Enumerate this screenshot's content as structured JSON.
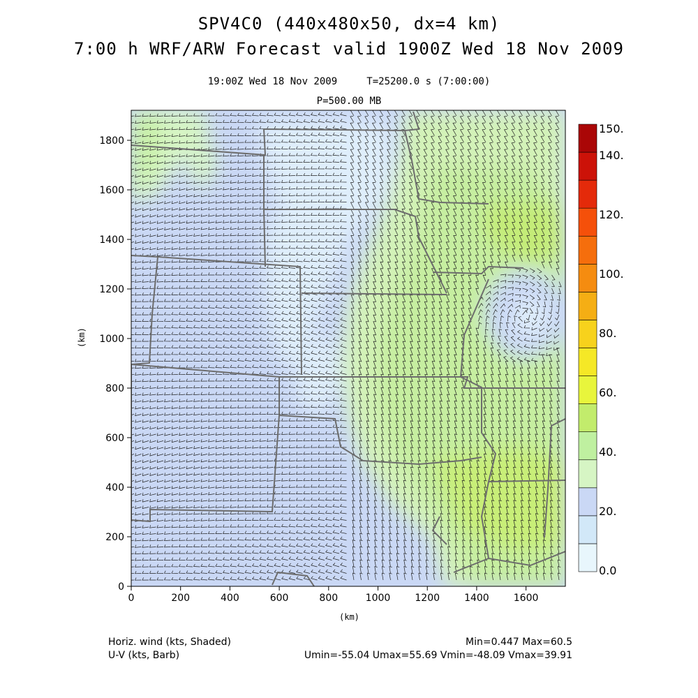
{
  "header": {
    "title_line1": "SPV4C0 (440x480x50, dx=4 km)",
    "title_line2": "7:00 h WRF/ARW Forecast valid 1900Z Wed 18 Nov 2009",
    "valid_time": "19:00Z Wed 18 Nov 2009     T=25200.0 s (7:00:00)",
    "level": "P=500.00 MB"
  },
  "axes": {
    "xlabel": "(km)",
    "ylabel": "(km)",
    "x_ticks": [
      "0",
      "200",
      "400",
      "600",
      "800",
      "1000",
      "1200",
      "1400",
      "1600"
    ],
    "y_ticks": [
      "0",
      "200",
      "400",
      "600",
      "800",
      "1000",
      "1200",
      "1400",
      "1600",
      "1800"
    ]
  },
  "colorbar": {
    "labels": [
      "0.0",
      "20.",
      "40.",
      "60.",
      "80.",
      "100.",
      "120.",
      "140.",
      "150."
    ],
    "colors": [
      "#e8f6fc",
      "#d2e8f8",
      "#cad8f5",
      "#d6f5c4",
      "#bff0a0",
      "#c2ec6c",
      "#e8f53c",
      "#f5e826",
      "#f7d21c",
      "#f5ae14",
      "#f58c10",
      "#f56e0c",
      "#f5500a",
      "#e42a0a",
      "#cc1208",
      "#aa0606"
    ]
  },
  "footer": {
    "line1_left": "Horiz. wind (kts, Shaded)",
    "line2_left": "U-V (kts, Barb)",
    "line1_right": "Min=0.447 Max=60.5",
    "line2_right": "Umin=-55.04 Umax=55.69 Vmin=-48.09 Vmax=39.91"
  },
  "chart_data": {
    "type": "heatmap",
    "title": "SPV4C0 (440x480x50, dx=4 km)",
    "subtitle": "7:00 h WRF/ARW Forecast valid 1900Z Wed 18 Nov 2009",
    "xlabel": "(km)",
    "ylabel": "(km)",
    "xlim": [
      0,
      1760
    ],
    "ylim": [
      0,
      1920
    ],
    "field": "Horiz. wind (kts, Shaded)",
    "overlay": "U-V (kts, Barb)",
    "min": 0.447,
    "max": 60.5,
    "umin": -55.04,
    "umax": 55.69,
    "vmin": -48.09,
    "vmax": 39.91,
    "colorbar_range": [
      0,
      150
    ]
  }
}
